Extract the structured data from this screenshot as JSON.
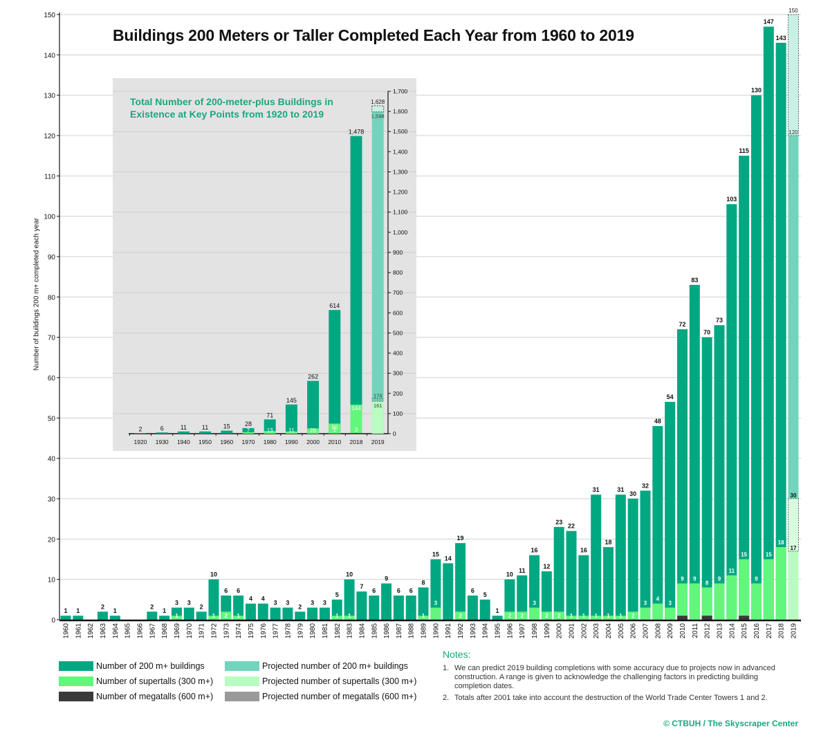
{
  "title": "Buildings 200 Meters or Taller Completed Each Year from 1960 to 2019",
  "colors": {
    "total": "#00a882",
    "supertall": "#62f77c",
    "megatall": "#3a3a3a",
    "projected_total": "#72d4bc",
    "projected_supertall": "#b9fcc2",
    "projected_megatall": "#9a9a9a",
    "accent": "#1aa77d",
    "inset_bg": "#e3e3e3"
  },
  "chart_data": [
    {
      "type": "bar",
      "title": "Buildings 200 Meters or Taller Completed Each Year from 1960 to 2019",
      "ylabel": "Number of buildings 200 m+ completed each year",
      "ylim": [
        0,
        150
      ],
      "yticks": [
        0,
        10,
        20,
        30,
        40,
        50,
        60,
        70,
        80,
        90,
        100,
        110,
        120,
        130,
        140,
        150
      ],
      "grid": true,
      "categories": [
        "1960",
        "1961",
        "1962",
        "1963",
        "1964",
        "1965",
        "1966",
        "1967",
        "1968",
        "1969",
        "1970",
        "1971",
        "1972",
        "1973",
        "1974",
        "1975",
        "1976",
        "1977",
        "1978",
        "1979",
        "1980",
        "1981",
        "1982",
        "1983",
        "1984",
        "1985",
        "1986",
        "1987",
        "1988",
        "1989",
        "1990",
        "1991",
        "1992",
        "1993",
        "1994",
        "1995",
        "1996",
        "1997",
        "1998",
        "1999",
        "2000",
        "2001",
        "2002",
        "2003",
        "2004",
        "2005",
        "2006",
        "2007",
        "2008",
        "2009",
        "2010",
        "2011",
        "2012",
        "2013",
        "2014",
        "2015",
        "2016",
        "2017",
        "2018"
      ],
      "series": [
        {
          "name": "Number of 200 m+ buildings",
          "values": [
            1,
            1,
            0,
            2,
            1,
            0,
            0,
            2,
            1,
            3,
            3,
            2,
            10,
            6,
            6,
            4,
            4,
            3,
            3,
            2,
            3,
            3,
            5,
            10,
            7,
            6,
            9,
            6,
            6,
            8,
            15,
            14,
            19,
            6,
            5,
            1,
            10,
            11,
            16,
            12,
            23,
            22,
            16,
            31,
            18,
            31,
            30,
            32,
            48,
            54,
            72,
            83,
            70,
            73,
            103,
            115,
            130,
            147,
            143
          ]
        },
        {
          "name": "Number of supertalls (300 m+)",
          "values": [
            0,
            0,
            0,
            0,
            0,
            0,
            0,
            0,
            0,
            1,
            0,
            0,
            1,
            2,
            1,
            0,
            0,
            0,
            0,
            0,
            0,
            0,
            1,
            1,
            0,
            0,
            0,
            0,
            0,
            1,
            3,
            0,
            2,
            0,
            0,
            0,
            2,
            2,
            3,
            2,
            2,
            1,
            1,
            1,
            1,
            1,
            2,
            3,
            4,
            3,
            9,
            9,
            8,
            9,
            11,
            15,
            9,
            15,
            18
          ]
        },
        {
          "name": "Number of megatalls (600 m+)",
          "values": [
            0,
            0,
            0,
            0,
            0,
            0,
            0,
            0,
            0,
            0,
            0,
            0,
            0,
            0,
            0,
            0,
            0,
            0,
            0,
            0,
            0,
            0,
            0,
            0,
            0,
            0,
            0,
            0,
            0,
            0,
            0,
            0,
            0,
            0,
            0,
            0,
            0,
            0,
            0,
            0,
            0,
            0,
            0,
            0,
            0,
            0,
            0,
            0,
            0,
            0,
            1,
            0,
            1,
            0,
            0,
            1,
            0,
            0,
            0
          ]
        }
      ],
      "projected": {
        "category": "2019",
        "total_range": [
          120,
          150
        ],
        "supertall_range": [
          17,
          30
        ]
      }
    },
    {
      "type": "bar",
      "title": "Total Number of 200-meter-plus Buildings in Existence at Key Points from 1920 to 2019",
      "ylim": [
        0,
        1700
      ],
      "yticks": [
        "0",
        "100",
        "200",
        "300",
        "400",
        "500",
        "600",
        "700",
        "800",
        "900",
        "1,000",
        "1,100",
        "1,200",
        "1,300",
        "1,400",
        "1,500",
        "1,600",
        "1,700"
      ],
      "categories": [
        "1920",
        "1930",
        "1940",
        "1950",
        "1960",
        "1970",
        "1980",
        "1990",
        "2000",
        "2010",
        "2018"
      ],
      "series": [
        {
          "name": "Number of 200 m+ buildings",
          "values": [
            2,
            6,
            11,
            11,
            15,
            28,
            71,
            145,
            262,
            614,
            1478
          ],
          "labels": [
            "2",
            "6",
            "11",
            "11",
            "15",
            "28",
            "71",
            "145",
            "262",
            "614",
            "1,478"
          ]
        },
        {
          "name": "Number of supertalls (300 m+)",
          "values": [
            0,
            0,
            0,
            0,
            0,
            7,
            13,
            11,
            26,
            50,
            144
          ]
        },
        {
          "name": "Number of megatalls (600 m+)",
          "values": [
            0,
            0,
            0,
            0,
            0,
            0,
            0,
            0,
            0,
            1,
            3
          ]
        }
      ],
      "projected": {
        "category": "2019",
        "total_range": [
          1598,
          1628
        ],
        "total_labels": [
          "1,598",
          "1,628"
        ],
        "supertall_range": [
          161,
          174
        ]
      }
    }
  ],
  "legend": [
    {
      "label": "Number of 200 m+ buildings",
      "color_key": "total"
    },
    {
      "label": "Number of supertalls (300 m+)",
      "color_key": "supertall"
    },
    {
      "label": "Number of megatalls (600 m+)",
      "color_key": "megatall"
    },
    {
      "label": "Projected number of 200 m+ buildings",
      "color_key": "projected_total"
    },
    {
      "label": "Projected number of supertalls (300 m+)",
      "color_key": "projected_supertall"
    },
    {
      "label": "Projected number of megatalls (600 m+)",
      "color_key": "projected_megatall"
    }
  ],
  "notes": {
    "heading": "Notes:",
    "items": [
      {
        "num": "1.",
        "text": "We can predict 2019 building completions with some accuracy due to projects now in advanced construction. A range is given to acknowledge the challenging factors in predicting building completion dates."
      },
      {
        "num": "2.",
        "text": "Totals after 2001 take into account the destruction of the World Trade Center Towers 1 and 2."
      }
    ]
  },
  "credit": "© CTBUH / The Skyscraper Center"
}
